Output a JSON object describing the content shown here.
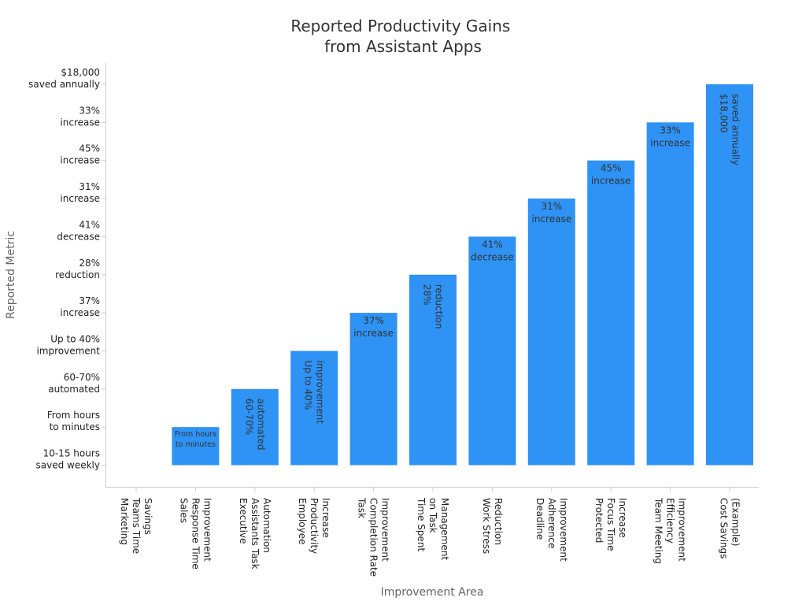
{
  "chart_data": {
    "type": "bar",
    "title": [
      "Reported Productivity Gains",
      "from Assistant Apps"
    ],
    "xlabel": "Improvement Area",
    "ylabel": "Reported Metric",
    "bar_color": "#2e93f5",
    "axis_color": "#cccccc",
    "yticks": [
      [
        "10-15 hours",
        "saved weekly"
      ],
      [
        "From hours",
        "to minutes"
      ],
      [
        "60-70%",
        "automated"
      ],
      [
        "Up to 40%",
        "improvement"
      ],
      [
        "37%",
        "increase"
      ],
      [
        "28%",
        "reduction"
      ],
      [
        "41%",
        "decrease"
      ],
      [
        "31%",
        "increase"
      ],
      [
        "45%",
        "increase"
      ],
      [
        "33%",
        "increase"
      ],
      [
        "$18,000",
        "saved annually"
      ]
    ],
    "categories": [
      [
        "Marketing",
        "Teams Time",
        "Savings"
      ],
      [
        "Sales",
        "Response Time",
        "Improvement"
      ],
      [
        "Executive",
        "Assistants Task",
        "Automation"
      ],
      [
        "Employee",
        "Productivity",
        "Increase"
      ],
      [
        "Task",
        "Completion Rate",
        "Improvement"
      ],
      [
        "Time Spent",
        "on Task",
        "Management"
      ],
      [
        "Work Stress",
        "Reduction"
      ],
      [
        "Deadline",
        "Adherence",
        "Improvement"
      ],
      [
        "Protected",
        "Focus Time",
        "Increase"
      ],
      [
        "Team Meeting",
        "Efficiency",
        "Improvement"
      ],
      [
        "Cost Savings",
        "(Example)"
      ]
    ],
    "values": [
      0,
      1,
      2,
      3,
      4,
      5,
      6,
      7,
      8,
      9,
      10
    ],
    "data_labels": [
      null,
      {
        "lines": [
          "From hours",
          "to minutes"
        ],
        "rotate": false,
        "small": true
      },
      {
        "lines": [
          "60-70%",
          "automated"
        ],
        "rotate": true
      },
      {
        "lines": [
          "Up to 40%",
          "improvement"
        ],
        "rotate": true
      },
      {
        "lines": [
          "37%",
          "increase"
        ],
        "rotate": false
      },
      {
        "lines": [
          "28%",
          "reduction"
        ],
        "rotate": true
      },
      {
        "lines": [
          "41%",
          "decrease"
        ],
        "rotate": false
      },
      {
        "lines": [
          "31%",
          "increase"
        ],
        "rotate": false
      },
      {
        "lines": [
          "45%",
          "increase"
        ],
        "rotate": false
      },
      {
        "lines": [
          "33%",
          "increase"
        ],
        "rotate": false
      },
      {
        "lines": [
          "$18,000",
          "saved annually"
        ],
        "rotate": true
      }
    ]
  }
}
